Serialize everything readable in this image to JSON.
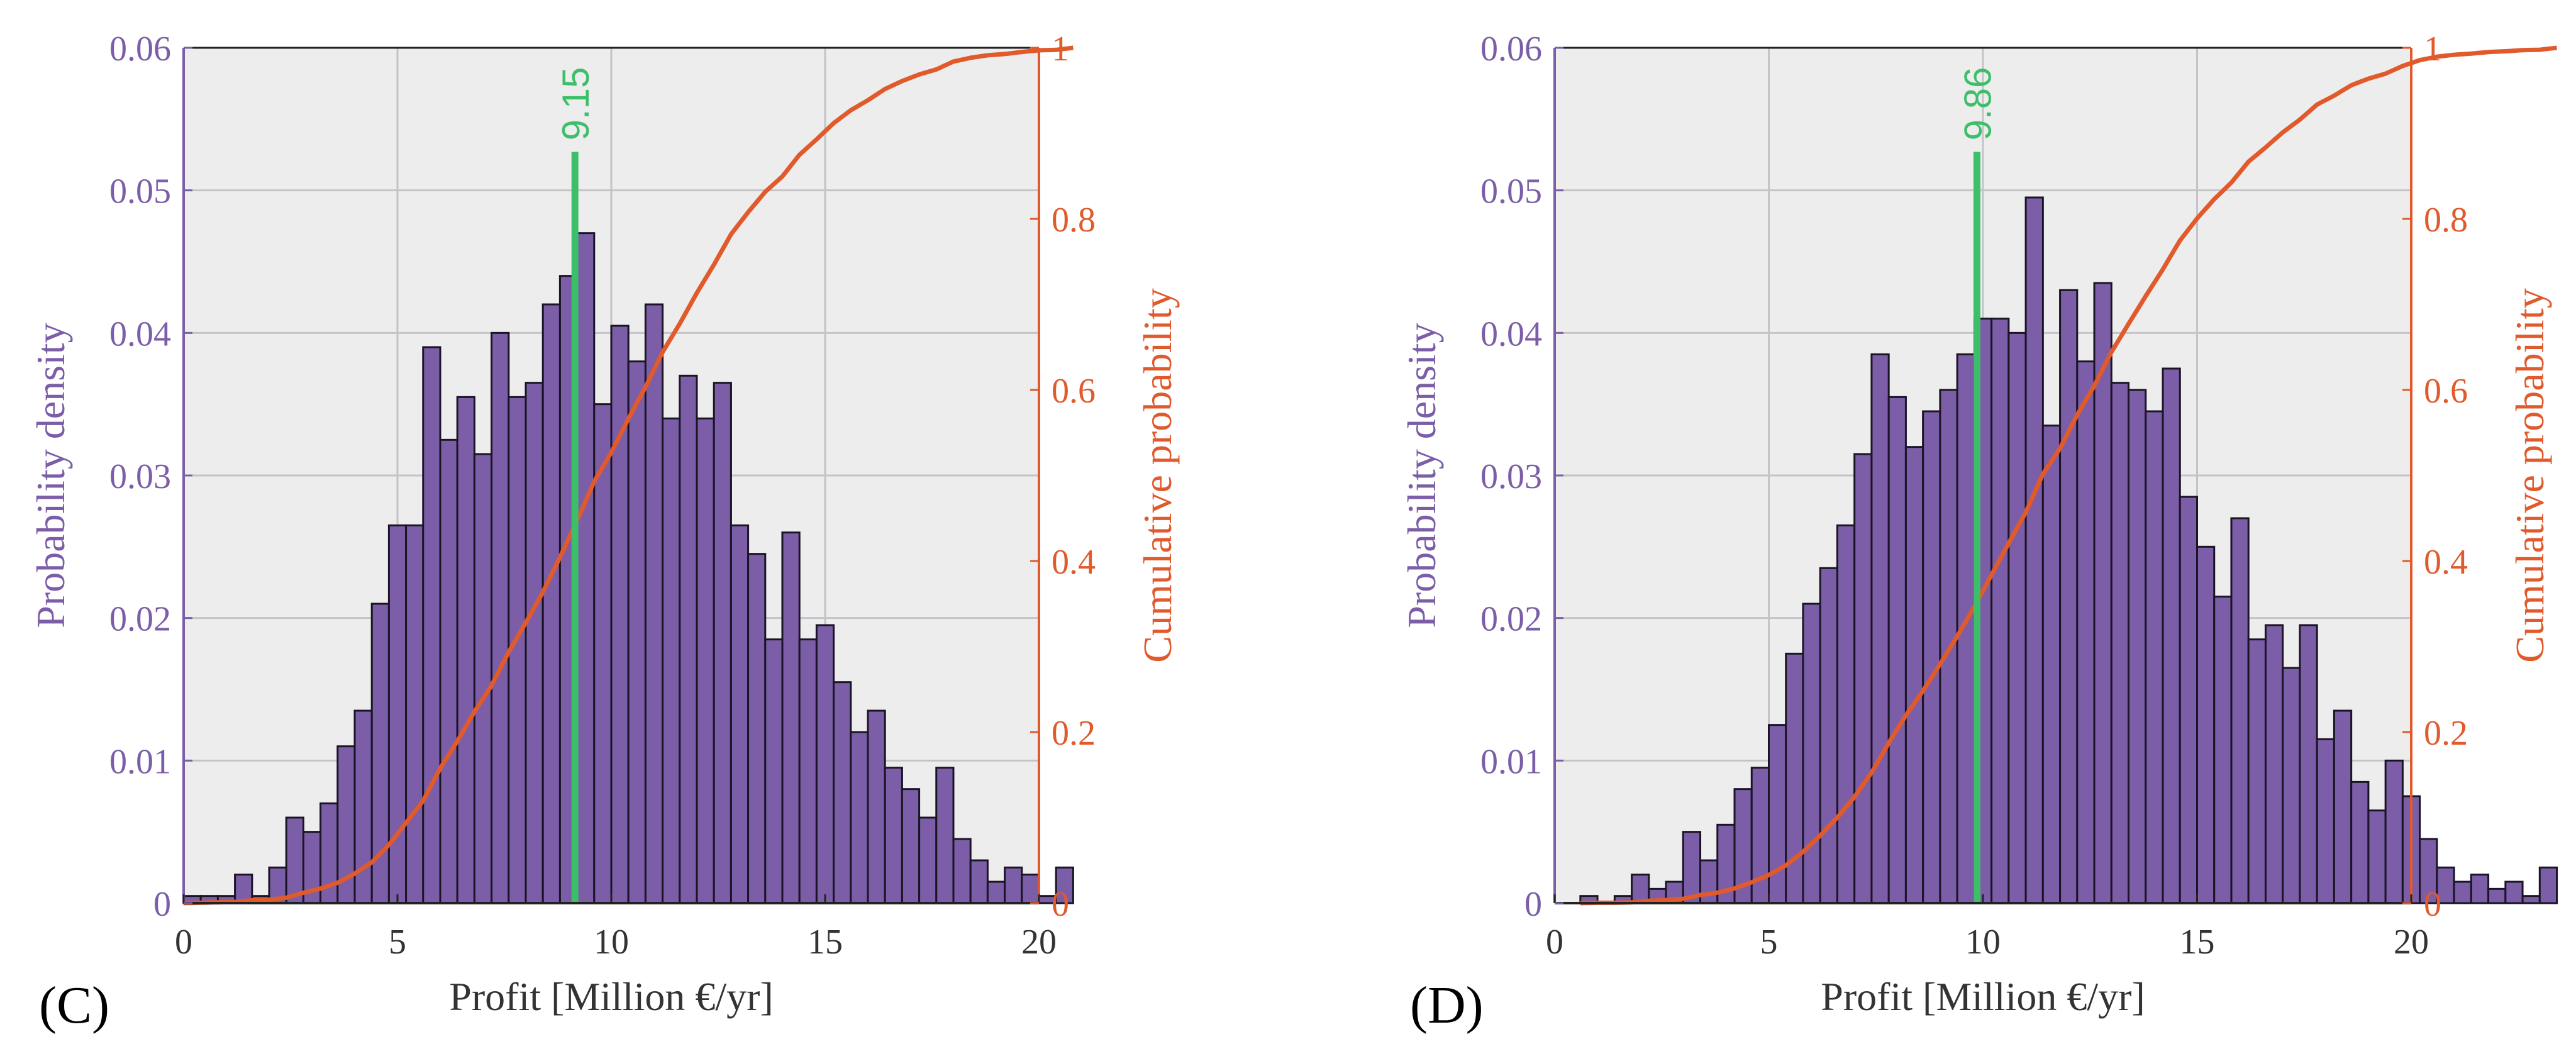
{
  "chart_data": [
    {
      "type": "histogram-with-cdf",
      "panel_label": "(C)",
      "xlabel": "Profit [Million €/yr]",
      "ylabel_left": "Probability density",
      "ylabel_right": "Cumulative probability",
      "xlim": [
        0,
        20
      ],
      "ylim_left": [
        0,
        0.06
      ],
      "ylim_right": [
        0,
        1
      ],
      "x_ticks": [
        0,
        5,
        10,
        15,
        20
      ],
      "y_left_ticks": [
        "0",
        "0.01",
        "0.02",
        "0.03",
        "0.04",
        "0.05",
        "0.06"
      ],
      "y_right_ticks": [
        "0",
        "0.2",
        "0.4",
        "0.6",
        "0.8",
        "1"
      ],
      "bin_start": 0,
      "bin_width": 0.4,
      "density": [
        0.0005,
        0.0005,
        0.0005,
        0.002,
        0.0005,
        0.0025,
        0.006,
        0.005,
        0.007,
        0.011,
        0.0135,
        0.021,
        0.0265,
        0.0265,
        0.039,
        0.0325,
        0.0355,
        0.0315,
        0.04,
        0.0355,
        0.0365,
        0.042,
        0.044,
        0.047,
        0.035,
        0.0405,
        0.038,
        0.042,
        0.034,
        0.037,
        0.034,
        0.0365,
        0.0265,
        0.0245,
        0.0185,
        0.026,
        0.0185,
        0.0195,
        0.0155,
        0.012,
        0.0135,
        0.0095,
        0.008,
        0.006,
        0.0095,
        0.0045,
        0.003,
        0.0015,
        0.0025,
        0.002,
        0.0005,
        0.0025
      ],
      "median": 9.15,
      "median_label": "9.15",
      "colors": {
        "bars": "#7b5ea7",
        "cdf": "#e05a2c",
        "median": "#3dbf6a",
        "bg": "#ededed"
      }
    },
    {
      "type": "histogram-with-cdf",
      "panel_label": "(D)",
      "xlabel": "Profit [Million €/yr]",
      "ylabel_left": "Probability density",
      "ylabel_right": "Cumulative probability",
      "xlim": [
        0,
        20
      ],
      "ylim_left": [
        0,
        0.06
      ],
      "ylim_right": [
        0,
        1
      ],
      "x_ticks": [
        0,
        5,
        10,
        15,
        20
      ],
      "y_left_ticks": [
        "0",
        "0.01",
        "0.02",
        "0.03",
        "0.04",
        "0.05",
        "0.06"
      ],
      "y_right_ticks": [
        "0",
        "0.2",
        "0.4",
        "0.6",
        "0.8",
        "1"
      ],
      "bin_start": 0.6,
      "bin_width": 0.4,
      "density": [
        0.0005,
        0.0,
        0.0005,
        0.002,
        0.001,
        0.0015,
        0.005,
        0.003,
        0.0055,
        0.008,
        0.0095,
        0.0125,
        0.0175,
        0.021,
        0.0235,
        0.0265,
        0.0315,
        0.0385,
        0.0355,
        0.032,
        0.0345,
        0.036,
        0.0385,
        0.041,
        0.041,
        0.04,
        0.0495,
        0.0335,
        0.043,
        0.038,
        0.0435,
        0.0365,
        0.036,
        0.0345,
        0.0375,
        0.0285,
        0.025,
        0.0215,
        0.027,
        0.0185,
        0.0195,
        0.0165,
        0.0195,
        0.0115,
        0.0135,
        0.0085,
        0.0065,
        0.01,
        0.0075,
        0.0045,
        0.0025,
        0.0015,
        0.002,
        0.001,
        0.0015,
        0.0005,
        0.0025
      ],
      "median": 9.86,
      "median_label": "9.86",
      "colors": {
        "bars": "#7b5ea7",
        "cdf": "#e05a2c",
        "median": "#3dbf6a",
        "bg": "#ededed"
      }
    }
  ]
}
